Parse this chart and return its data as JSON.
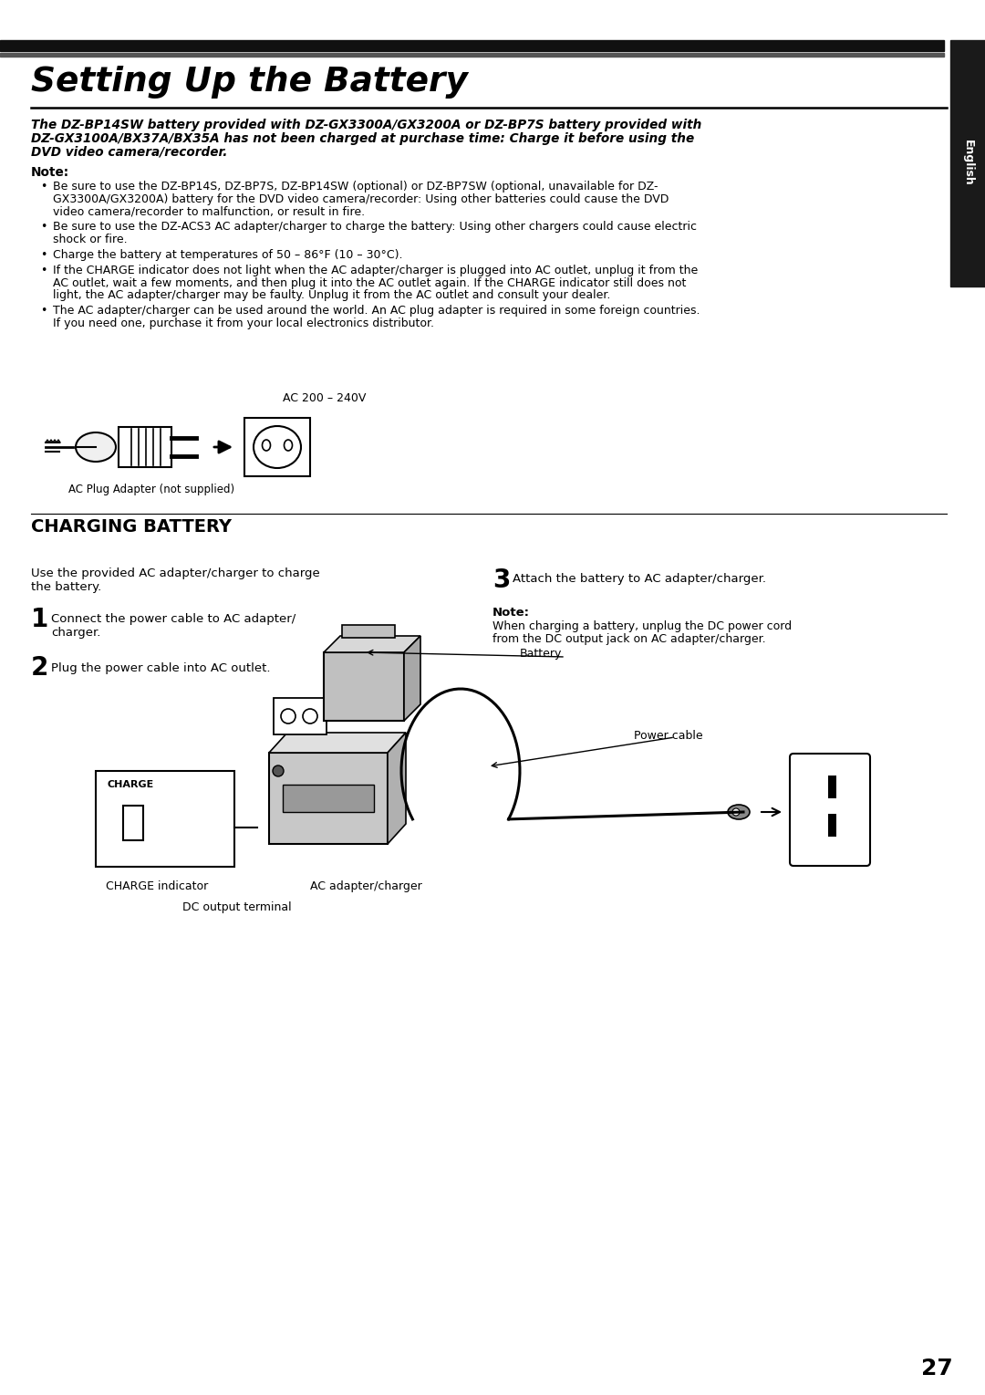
{
  "bg_color": "#ffffff",
  "title": "Setting Up the Battery",
  "sidebar_color": "#1a1a1a",
  "sidebar_text": "English",
  "intro_italic_line1": "The DZ-BP14SW battery provided with DZ-GX3300A/GX3200A or DZ-BP7S battery provided with",
  "intro_italic_line2": "DZ-GX3100A/BX37A/BX35A has not been charged at purchase time: Charge it before using the",
  "intro_italic_line3": "DVD video camera/recorder.",
  "note_label": "Note:",
  "bullet1_line1": "Be sure to use the DZ-BP14S, DZ-BP7S, DZ-BP14SW (optional) or DZ-BP7SW (optional, unavailable for DZ-",
  "bullet1_line2": "GX3300A/GX3200A) battery for the DVD video camera/recorder: Using other batteries could cause the DVD",
  "bullet1_line3": "video camera/recorder to malfunction, or result in fire.",
  "bullet2_line1": "Be sure to use the DZ-ACS3 AC adapter/charger to charge the battery: Using other chargers could cause electric",
  "bullet2_line2": "shock or fire.",
  "bullet3_line1": "Charge the battery at temperatures of 50 – 86°F (10 – 30°C).",
  "bullet4_line1": "If the CHARGE indicator does not light when the AC adapter/charger is plugged into AC outlet, unplug it from the",
  "bullet4_line2": "AC outlet, wait a few moments, and then plug it into the AC outlet again. If the CHARGE indicator still does not",
  "bullet4_line3": "light, the AC adapter/charger may be faulty. Unplug it from the AC outlet and consult your dealer.",
  "bullet5_line1": "The AC adapter/charger can be used around the world. An AC plug adapter is required in some foreign countries.",
  "bullet5_line2": "If you need one, purchase it from your local electronics distributor.",
  "ac_voltage_label": "AC 200 – 240V",
  "ac_plug_label": "AC Plug Adapter (not supplied)",
  "charging_battery_title": "CHARGING BATTERY",
  "intro_text_line1": "Use the provided AC adapter/charger to charge",
  "intro_text_line2": "the battery.",
  "step1_text_line1": "Connect the power cable to AC adapter/",
  "step1_text_line2": "charger.",
  "step2_text": "Plug the power cable into AC outlet.",
  "step3_text": "Attach the battery to AC adapter/charger.",
  "note2_label": "Note:",
  "note2_line1": "When charging a battery, unplug the DC power cord",
  "note2_line2": "from the DC output jack on AC adapter/charger.",
  "label_battery": "Battery",
  "label_power_cable": "Power cable",
  "label_charge_ind": "CHARGE indicator",
  "label_ac_adapter": "AC adapter/charger",
  "label_dc_terminal": "DC output terminal",
  "page_number": "27"
}
